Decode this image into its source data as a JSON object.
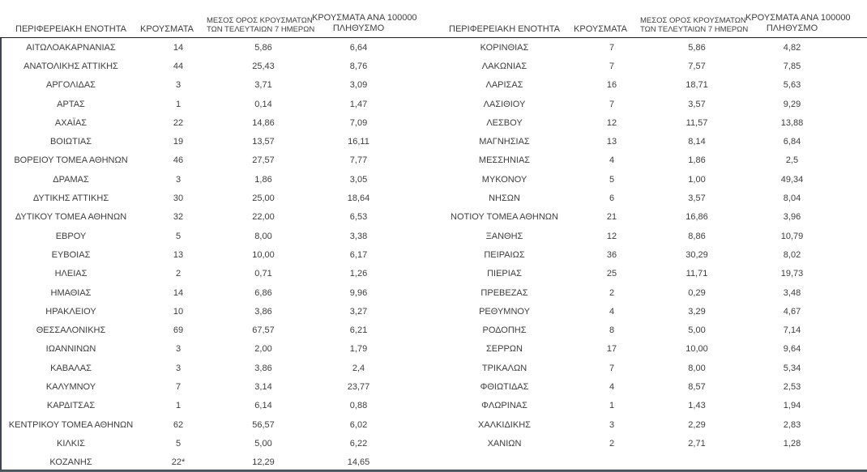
{
  "headers": {
    "region": "ΠΕΡΙΦΕΡΕΙΑΚΗ ΕΝΟΤΗΤΑ",
    "cases": "ΚΡΟΥΣΜΑΤΑ",
    "avg7_line1": "ΜΕΣΟΣ ΟΡΟΣ ΚΡΟΥΣΜΑΤΩΝ",
    "avg7_line2": "ΤΩΝ ΤΕΛΕΥΤΑΙΩΝ 7 ΗΜΕΡΩΝ",
    "per100k_line1": "ΚΡΟΥΣΜΑΤΑ ΑΝΑ 100000",
    "per100k_line2": "ΠΛΗΘΥΣΜΟ"
  },
  "left_rows": [
    [
      "ΑΙΤΩΛΟΑΚΑΡΝΑΝΙΑΣ",
      "14",
      "5,86",
      "6,64"
    ],
    [
      "ΑΝΑΤΟΛΙΚΗΣ ΑΤΤΙΚΗΣ",
      "44",
      "25,43",
      "8,76"
    ],
    [
      "ΑΡΓΟΛΙΔΑΣ",
      "3",
      "3,71",
      "3,09"
    ],
    [
      "ΑΡΤΑΣ",
      "1",
      "0,14",
      "1,47"
    ],
    [
      "ΑΧΑΪΑΣ",
      "22",
      "14,86",
      "7,09"
    ],
    [
      "ΒΟΙΩΤΙΑΣ",
      "19",
      "13,57",
      "16,11"
    ],
    [
      "ΒΟΡΕΙΟΥ ΤΟΜΕΑ ΑΘΗΝΩΝ",
      "46",
      "27,57",
      "7,77"
    ],
    [
      "ΔΡΑΜΑΣ",
      "3",
      "1,86",
      "3,05"
    ],
    [
      "ΔΥΤΙΚΗΣ ΑΤΤΙΚΗΣ",
      "30",
      "25,00",
      "18,64"
    ],
    [
      "ΔΥΤΙΚΟΥ ΤΟΜΕΑ ΑΘΗΝΩΝ",
      "32",
      "22,00",
      "6,53"
    ],
    [
      "ΕΒΡΟΥ",
      "5",
      "8,00",
      "3,38"
    ],
    [
      "ΕΥΒΟΙΑΣ",
      "13",
      "10,00",
      "6,17"
    ],
    [
      "ΗΛΕΙΑΣ",
      "2",
      "0,71",
      "1,26"
    ],
    [
      "ΗΜΑΘΙΑΣ",
      "14",
      "6,86",
      "9,96"
    ],
    [
      "ΗΡΑΚΛΕΙΟΥ",
      "10",
      "3,86",
      "3,27"
    ],
    [
      "ΘΕΣΣΑΛΟΝΙΚΗΣ",
      "69",
      "67,57",
      "6,21"
    ],
    [
      "ΙΩΑΝΝΙΝΩΝ",
      "3",
      "2,00",
      "1,79"
    ],
    [
      "ΚΑΒΑΛΑΣ",
      "3",
      "3,86",
      "2,4"
    ],
    [
      "ΚΑΛΥΜΝΟΥ",
      "7",
      "3,14",
      "23,77"
    ],
    [
      "ΚΑΡΔΙΤΣΑΣ",
      "1",
      "6,14",
      "0,88"
    ],
    [
      "ΚΕΝΤΡΙΚΟΥ ΤΟΜΕΑ ΑΘΗΝΩΝ",
      "62",
      "56,57",
      "6,02"
    ],
    [
      "ΚΙΛΚΙΣ",
      "5",
      "5,00",
      "6,22"
    ],
    [
      "ΚΟΖΑΝΗΣ",
      "22*",
      "12,29",
      "14,65"
    ]
  ],
  "right_rows": [
    [
      "ΚΟΡΙΝΘΙΑΣ",
      "7",
      "5,86",
      "4,82"
    ],
    [
      "ΛΑΚΩΝΙΑΣ",
      "7",
      "7,57",
      "7,85"
    ],
    [
      "ΛΑΡΙΣΑΣ",
      "16",
      "18,71",
      "5,63"
    ],
    [
      "ΛΑΣΙΘΙΟΥ",
      "7",
      "3,57",
      "9,29"
    ],
    [
      "ΛΕΣΒΟΥ",
      "12",
      "11,57",
      "13,88"
    ],
    [
      "ΜΑΓΝΗΣΙΑΣ",
      "13",
      "8,14",
      "6,84"
    ],
    [
      "ΜΕΣΣΗΝΙΑΣ",
      "4",
      "1,86",
      "2,5"
    ],
    [
      "ΜΥΚΟΝΟΥ",
      "5",
      "1,00",
      "49,34"
    ],
    [
      "ΝΗΣΩΝ",
      "6",
      "3,57",
      "8,04"
    ],
    [
      "ΝΟΤΙΟΥ ΤΟΜΕΑ ΑΘΗΝΩΝ",
      "21",
      "16,86",
      "3,96"
    ],
    [
      "ΞΑΝΘΗΣ",
      "12",
      "8,86",
      "10,79"
    ],
    [
      "ΠΕΙΡΑΙΩΣ",
      "36",
      "30,29",
      "8,02"
    ],
    [
      "ΠΙΕΡΙΑΣ",
      "25",
      "11,71",
      "19,73"
    ],
    [
      "ΠΡΕΒΕΖΑΣ",
      "2",
      "0,29",
      "3,48"
    ],
    [
      "ΡΕΘΥΜΝΟΥ",
      "4",
      "3,29",
      "4,67"
    ],
    [
      "ΡΟΔΟΠΗΣ",
      "8",
      "5,00",
      "7,14"
    ],
    [
      "ΣΕΡΡΩΝ",
      "17",
      "10,00",
      "9,64"
    ],
    [
      "ΤΡΙΚΑΛΩΝ",
      "7",
      "8,00",
      "5,34"
    ],
    [
      "ΦΘΙΩΤΙΔΑΣ",
      "4",
      "8,57",
      "2,53"
    ],
    [
      "ΦΛΩΡΙΝΑΣ",
      "1",
      "1,43",
      "1,94"
    ],
    [
      "ΧΑΛΚΙΔΙΚΗΣ",
      "3",
      "2,29",
      "2,83"
    ],
    [
      "ΧΑΝΙΩΝ",
      "2",
      "2,71",
      "1,28"
    ]
  ],
  "colors": {
    "text": "#3d3d3d",
    "header_rule": "#1c1c1c",
    "bottom_rule": "#566069",
    "left_rule": "#3f4650"
  }
}
